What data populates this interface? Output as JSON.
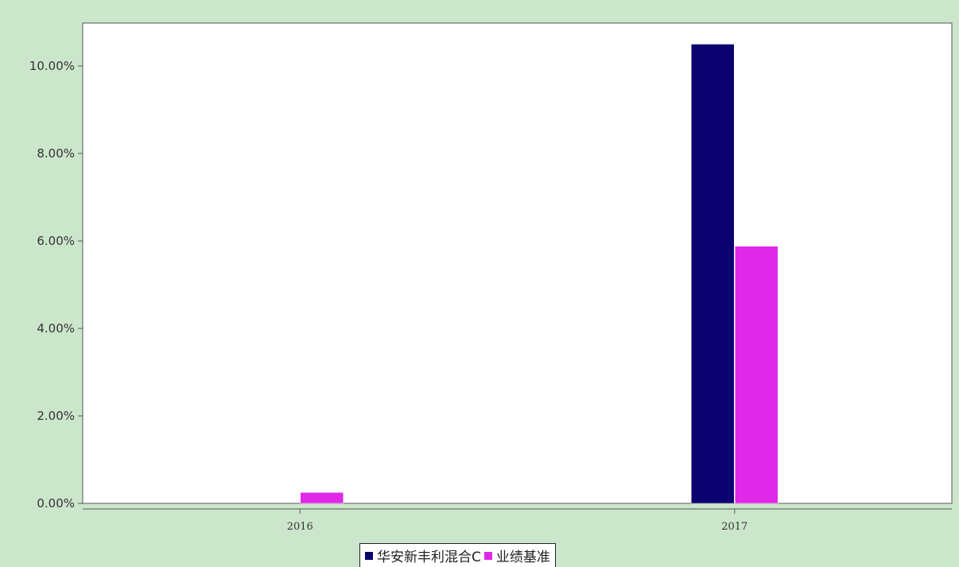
{
  "chart_data": {
    "type": "bar",
    "title": "",
    "xlabel": "",
    "ylabel": "",
    "categories": [
      "2016",
      "2017"
    ],
    "series": [
      {
        "name": "华安新丰利混合C",
        "color": "#0b0170",
        "values": [
          0,
          10.5
        ]
      },
      {
        "name": "业绩基准",
        "color": "#e028e8",
        "values": [
          0.25,
          5.88
        ]
      }
    ],
    "yticks": [
      "0.00%",
      "2.00%",
      "4.00%",
      "6.00%",
      "8.00%",
      "10.00%"
    ],
    "ytick_values": [
      0,
      2,
      4,
      6,
      8,
      10
    ],
    "ylim": [
      0,
      11
    ],
    "grid": false,
    "legend_position": "bottom-center",
    "colors": {
      "page_background": "#cce6cc",
      "plot_background": "#ffffff"
    }
  }
}
